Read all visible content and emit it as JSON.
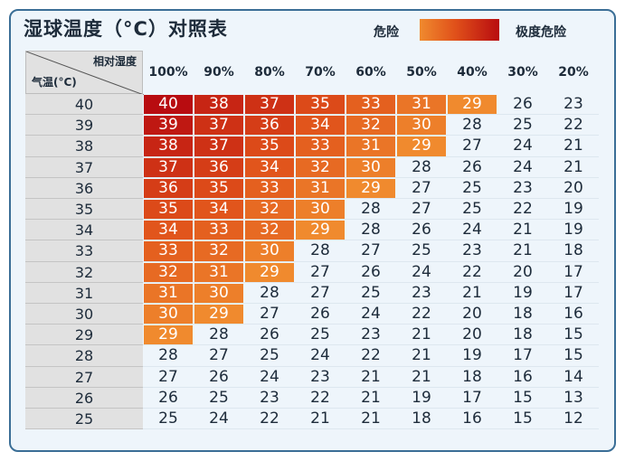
{
  "title": "湿球温度（°C）对照表",
  "legend": {
    "danger_label": "危险",
    "extreme_label": "极度危险",
    "colors": {
      "danger": "#f08a2e",
      "mid": "#e0501a",
      "extreme": "#b80c10"
    }
  },
  "corner": {
    "top_label": "相对湿度",
    "bottom_label": "气温(°C)"
  },
  "chart_data": {
    "type": "table",
    "title": "湿球温度（°C）对照表",
    "columns": [
      "100%",
      "90%",
      "80%",
      "70%",
      "60%",
      "50%",
      "40%",
      "30%",
      "20%"
    ],
    "rows": [
      {
        "label": "40",
        "values": [
          40,
          38,
          37,
          35,
          33,
          31,
          29,
          26,
          23
        ],
        "danger_count": 7
      },
      {
        "label": "39",
        "values": [
          39,
          37,
          36,
          34,
          32,
          30,
          28,
          25,
          22
        ],
        "danger_count": 6
      },
      {
        "label": "38",
        "values": [
          38,
          37,
          35,
          33,
          31,
          29,
          27,
          24,
          21
        ],
        "danger_count": 6
      },
      {
        "label": "37",
        "values": [
          37,
          36,
          34,
          32,
          30,
          28,
          26,
          24,
          21
        ],
        "danger_count": 5
      },
      {
        "label": "36",
        "values": [
          36,
          35,
          33,
          31,
          29,
          27,
          25,
          23,
          20
        ],
        "danger_count": 5
      },
      {
        "label": "35",
        "values": [
          35,
          34,
          32,
          30,
          28,
          27,
          25,
          22,
          19
        ],
        "danger_count": 4
      },
      {
        "label": "34",
        "values": [
          34,
          33,
          32,
          29,
          28,
          26,
          24,
          21,
          19
        ],
        "danger_count": 4
      },
      {
        "label": "33",
        "values": [
          33,
          32,
          30,
          28,
          27,
          25,
          23,
          21,
          18
        ],
        "danger_count": 3
      },
      {
        "label": "32",
        "values": [
          32,
          31,
          29,
          27,
          26,
          24,
          22,
          20,
          17
        ],
        "danger_count": 3
      },
      {
        "label": "31",
        "values": [
          31,
          30,
          28,
          27,
          25,
          23,
          21,
          19,
          17
        ],
        "danger_count": 2
      },
      {
        "label": "30",
        "values": [
          30,
          29,
          27,
          26,
          24,
          22,
          20,
          18,
          16
        ],
        "danger_count": 2
      },
      {
        "label": "29",
        "values": [
          29,
          28,
          26,
          25,
          23,
          21,
          20,
          18,
          15
        ],
        "danger_count": 1
      },
      {
        "label": "28",
        "values": [
          28,
          27,
          25,
          24,
          22,
          21,
          19,
          17,
          15
        ],
        "danger_count": 0
      },
      {
        "label": "27",
        "values": [
          27,
          26,
          24,
          23,
          21,
          21,
          18,
          16,
          14
        ],
        "danger_count": 0
      },
      {
        "label": "26",
        "values": [
          26,
          25,
          23,
          22,
          21,
          19,
          17,
          15,
          13
        ],
        "danger_count": 0
      },
      {
        "label": "25",
        "values": [
          25,
          24,
          22,
          21,
          21,
          18,
          16,
          15,
          12
        ],
        "danger_count": 0
      }
    ]
  }
}
